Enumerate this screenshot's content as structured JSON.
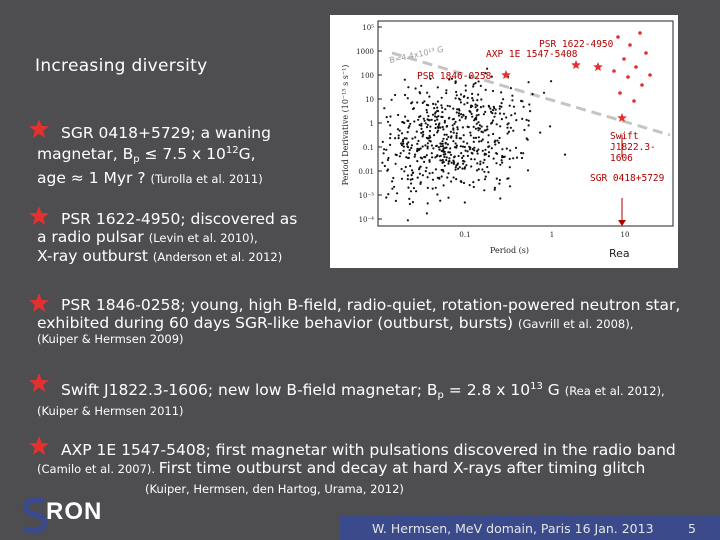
{
  "slide": {
    "title": "Increasing diversity",
    "footer": "W. Hermsen, MeV domain, Paris 16 Jan. 2013",
    "page_number": "5",
    "logo_text": "RON"
  },
  "bullets": [
    {
      "l1": "SGR 0418+5729; a waning",
      "l2a": "magnetar, B",
      "l2sub": "p",
      "l2b": " ≤ 7.5 x 10",
      "l2sup": "12",
      "l2c": "G,",
      "l3": "age ≈ 1 Myr ? ",
      "l3ref": "(Turolla et al. 2011)"
    },
    {
      "l1": "PSR 1622-4950; discovered as",
      "l2": "a radio pulsar ",
      "l2ref": "(Levin et al. 2010),",
      "l3": "X-ray outburst ",
      "l3ref": "(Anderson et al. 2012)"
    },
    {
      "l1": "PSR 1846-0258; young, high B-field, radio-quiet, rotation-powered neutron star,",
      "l2": "exhibited during 60 days SGR-like behavior (outburst, bursts) ",
      "l2ref": "(Gavrill et al. 2008),",
      "l3ref": "(Kuiper & Hermsen 2009)"
    },
    {
      "l1a": "Swift J1822.3-1606; new low B-field magnetar; B",
      "l1sub": "p",
      "l1b": " = 2.8 x 10",
      "l1sup": "13",
      "l1c": " G ",
      "l1ref": "(Rea et al. 2012),",
      "l2ref": "(Kuiper & Hermsen 2011)"
    },
    {
      "l1": "AXP 1E 1547-5408; first magnetar with pulsations discovered in the radio band",
      "l2ref": "(Camilo et al. 2007). ",
      "l2": "First time outburst and decay at hard X-rays after timing glitch",
      "l3": "(Kuiper, Hermsen, den Hartog, Urama, 2012)"
    }
  ],
  "figure": {
    "ylabel": "Period Derivative (10⁻¹⁵ s s⁻¹)",
    "xlabel": "Period (s)",
    "yticks": [
      "10⁵",
      "1000",
      "100",
      "10",
      "1",
      "0.1",
      "0.01",
      "10⁻³",
      "10⁻⁴"
    ],
    "xticks": [
      "0.1",
      "1",
      "10"
    ],
    "bline_label": "B=4.4x10¹³ G",
    "annotations": {
      "psr1622": "PSR 1622-4950",
      "axp1547": "AXP 1E 1547-5408",
      "psr1846": "PSR 1846-0258",
      "swift": "Swift J1822.3-1606",
      "sgr0418": "SGR 0418+5729",
      "credit": "Rea"
    },
    "colors": {
      "pulsar": "#111111",
      "magnetar": "#e53030",
      "line": "#bbbbbb"
    }
  }
}
